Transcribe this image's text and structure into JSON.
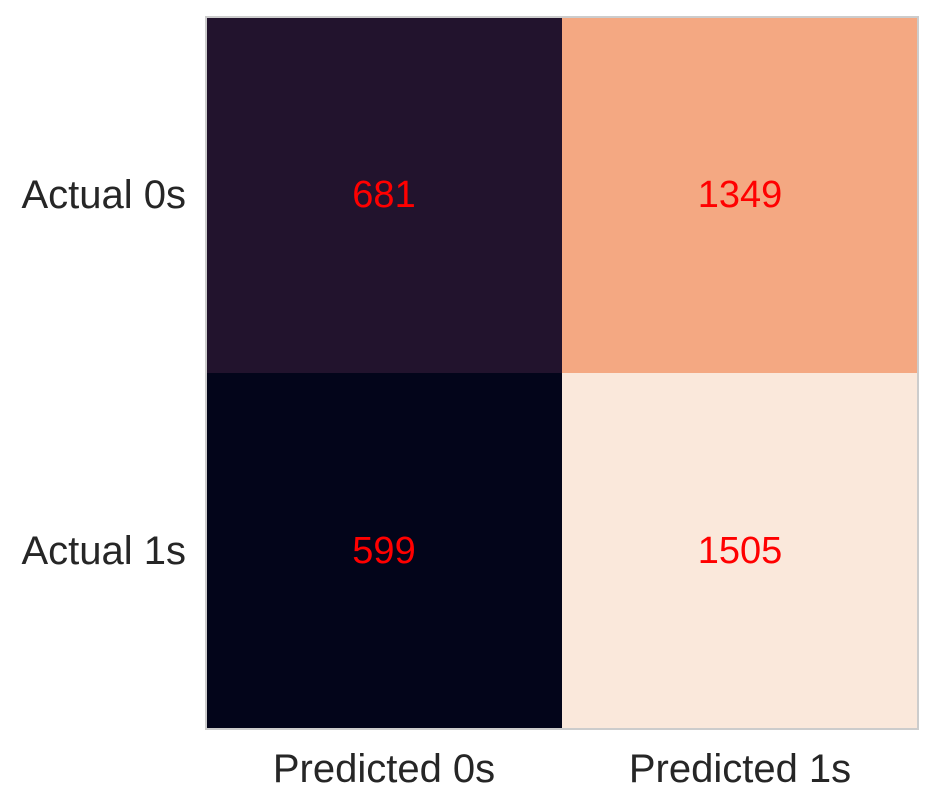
{
  "chart_data": {
    "type": "heatmap",
    "title": "",
    "xlabel": "",
    "ylabel": "",
    "row_labels": [
      "Actual 0s",
      "Actual 1s"
    ],
    "col_labels": [
      "Predicted 0s",
      "Predicted 1s"
    ],
    "values": [
      [
        681,
        1349
      ],
      [
        599,
        1505
      ]
    ],
    "value_text": [
      [
        "681",
        "1349"
      ],
      [
        "599",
        "1505"
      ]
    ],
    "cell_colors": [
      [
        "#22132d",
        "#f4a882"
      ],
      [
        "#03051a",
        "#fae8db"
      ]
    ],
    "annotation_color": "#ff0000",
    "frame_color": "#cccccc",
    "tick_label_color": "#262626",
    "grid": false,
    "colorbar": false
  }
}
